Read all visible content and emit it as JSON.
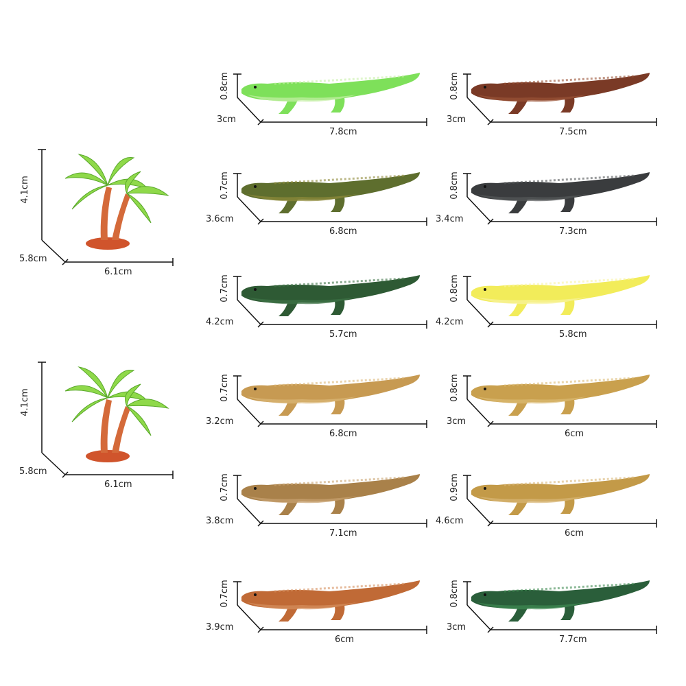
{
  "trees": [
    {
      "height": "4.1cm",
      "depth": "5.8cm",
      "width": "6.1cm"
    },
    {
      "height": "4.1cm",
      "depth": "5.8cm",
      "width": "6.1cm"
    }
  ],
  "crocodiles": [
    {
      "height": "0.8cm",
      "depth": "3cm",
      "length": "7.8cm",
      "color": "#7ee05a",
      "belly": "#c8f0a8"
    },
    {
      "height": "0.8cm",
      "depth": "3cm",
      "length": "7.5cm",
      "color": "#7a3a26",
      "belly": "#9a5236"
    },
    {
      "height": "0.7cm",
      "depth": "3.6cm",
      "length": "6.8cm",
      "color": "#5e6e2e",
      "belly": "#8f8a3a"
    },
    {
      "height": "0.8cm",
      "depth": "3.4cm",
      "length": "7.3cm",
      "color": "#3a3c3e",
      "belly": "#55585a"
    },
    {
      "height": "0.7cm",
      "depth": "4.2cm",
      "length": "5.7cm",
      "color": "#2e5a34",
      "belly": "#3f7447"
    },
    {
      "height": "0.8cm",
      "depth": "4.2cm",
      "length": "5.8cm",
      "color": "#f2ec5a",
      "belly": "#f8f4a0"
    },
    {
      "height": "0.7cm",
      "depth": "3.2cm",
      "length": "6.8cm",
      "color": "#c79a52",
      "belly": "#dcb878"
    },
    {
      "height": "0.8cm",
      "depth": "3cm",
      "length": "6cm",
      "color": "#c9a04e",
      "belly": "#dcbb74"
    },
    {
      "height": "0.7cm",
      "depth": "3.8cm",
      "length": "7.1cm",
      "color": "#a9814a",
      "belly": "#c9a370"
    },
    {
      "height": "0.9cm",
      "depth": "4.6cm",
      "length": "6cm",
      "color": "#c39a48",
      "belly": "#d8b676"
    },
    {
      "height": "0.7cm",
      "depth": "3.9cm",
      "length": "6cm",
      "color": "#c06a36",
      "belly": "#d6905e"
    },
    {
      "height": "0.8cm",
      "depth": "3cm",
      "length": "7.7cm",
      "color": "#2a5e3a",
      "belly": "#3f8a52"
    }
  ]
}
